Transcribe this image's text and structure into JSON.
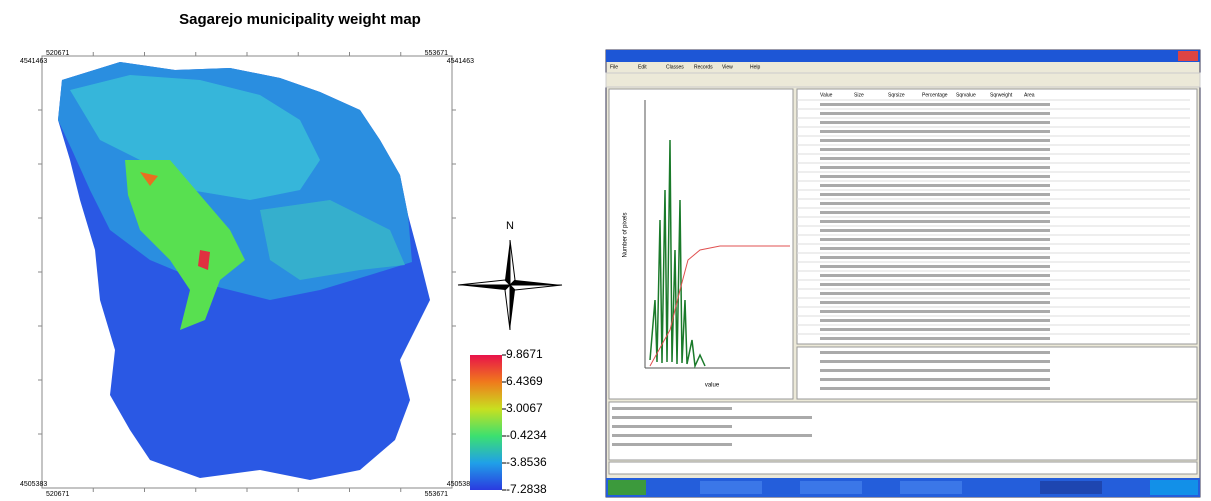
{
  "map": {
    "title": "Sagarejo municipality weight map",
    "corners": {
      "top_left_x": "520671",
      "top_left_y": "4541463",
      "top_right_x": "553671",
      "top_right_y": "4541463",
      "bottom_left_x": "520671",
      "bottom_left_y": "4505383",
      "bottom_right_x": "553671",
      "bottom_right_y": "4505383"
    },
    "north": "N",
    "legend": {
      "ticks": [
        9.8671,
        6.4369,
        3.0067,
        -0.4234,
        -3.8536,
        -7.2838
      ],
      "colors": [
        "#e8124a",
        "#f07a1c",
        "#c8e020",
        "#3ce070",
        "#20a0e8",
        "#2a3ae0"
      ]
    }
  },
  "screenshot": {
    "menu": [
      "File",
      "Edit",
      "Classes",
      "Records",
      "View",
      "Help"
    ],
    "columns": [
      "Value",
      "Size",
      "Sqrsize",
      "Percentage",
      "Sqrvalue",
      "Sqrweight",
      "Area"
    ],
    "y_label": "Number of pixels",
    "x_label": "value"
  }
}
